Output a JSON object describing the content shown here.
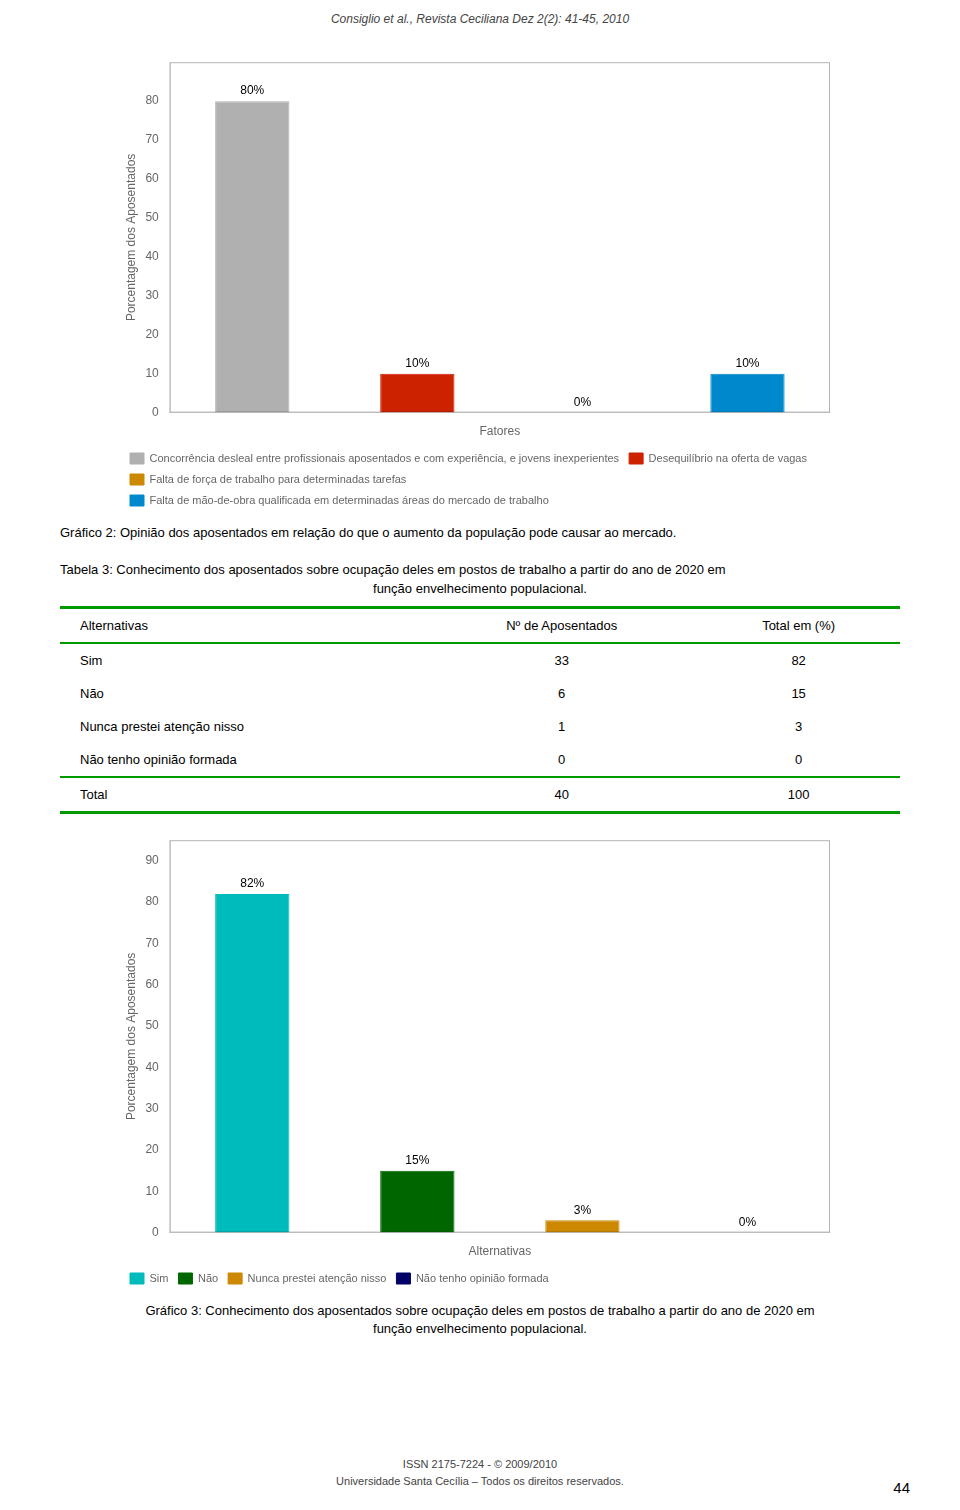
{
  "chart_data": [
    {
      "type": "bar",
      "title": [
        "Gráfico 2: Opinião dos aposentados em relação do que o aumento da população pode causar ao mercado."
      ],
      "annotations": [
        "Consiglio et al., Revista Ceciliana Dez 2(2): 41-45, 2010"
      ],
      "xlabel": "Fatores",
      "ylabel": "Porcentagem dos Aposentados",
      "categories": [
        null,
        null,
        null,
        null
      ],
      "series": [
        {
          "name": "Concorrência desleal entre profissionais aposentados e com experiência, e jovens inexperientes",
          "color": "#b0b0b0",
          "values": [
            80,
            null,
            null,
            null
          ],
          "value_labels": [
            "80%",
            null,
            null,
            null
          ]
        },
        {
          "name": "Desequilíbrio na oferta de vagas",
          "color": "#cc2200",
          "values": [
            null,
            10,
            null,
            null
          ],
          "value_labels": [
            null,
            "10%",
            null,
            null
          ]
        },
        {
          "name": "Falta de força de trabalho para determinadas tarefas",
          "color": "#cc8800",
          "values": [
            null,
            null,
            0,
            null
          ],
          "value_labels": [
            null,
            null,
            "0%",
            null
          ]
        },
        {
          "name": "Falta de mão-de-obra qualificada em determinadas áreas do mercado de trabalho",
          "color": "#0088cc",
          "values": [
            null,
            null,
            null,
            10
          ],
          "value_labels": [
            null,
            null,
            null,
            "10%"
          ]
        }
      ],
      "ylim": [
        0,
        90
      ],
      "yticks": [
        0,
        10,
        20,
        30,
        40,
        50,
        60,
        70,
        80
      ],
      "grid": false,
      "legend": "bottom",
      "data_labels": true,
      "tick_labels": "y"
    },
    {
      "type": "table",
      "title": [
        "Tabela 3: Conhecimento dos aposentados sobre ocupação deles em postos de trabalho a partir do ano de 2020 em",
        "função envelhecimento populacional."
      ],
      "xlabel": "Alternativas",
      "categories": [
        "Sim",
        "Não",
        "Nunca prestei atenção nisso",
        "Não tenho opinião formada",
        "Total"
      ],
      "series": [
        {
          "name": "Nº de Aposentados",
          "values": [
            33,
            6,
            1,
            0,
            40
          ]
        },
        {
          "name": "Total em (%)",
          "values": [
            82,
            15,
            3,
            0,
            100
          ]
        }
      ],
      "color": "#009900"
    },
    {
      "type": "bar",
      "title": [
        "Gráfico 3: Conhecimento dos aposentados sobre ocupação deles em postos de trabalho a partir do ano de 2020 em",
        "função envelhecimento populacional."
      ],
      "annotations": [
        "ISSN 2175-7224 - © 2009/2010",
        "Universidade Santa Cecília – Todos os direitos reservados.",
        "44"
      ],
      "xlabel": "Alternativas",
      "ylabel": "Porcentagem dos Aposentados",
      "categories": [
        null,
        null,
        null,
        null
      ],
      "series": [
        {
          "name": "Sim",
          "color": "#00bbbb",
          "values": [
            82,
            null,
            null,
            null
          ],
          "value_labels": [
            "82%",
            null,
            null,
            null
          ]
        },
        {
          "name": "Não",
          "color": "#006600",
          "values": [
            null,
            15,
            null,
            null
          ],
          "value_labels": [
            null,
            "15%",
            null,
            null
          ]
        },
        {
          "name": "Nunca prestei atenção nisso",
          "color": "#cc8800",
          "values": [
            null,
            null,
            3,
            null
          ],
          "value_labels": [
            null,
            null,
            "3%",
            null
          ]
        },
        {
          "name": "Não tenho opinião formada",
          "color": "#000066",
          "values": [
            null,
            null,
            null,
            0
          ],
          "value_labels": [
            null,
            null,
            null,
            "0%"
          ]
        }
      ],
      "ylim": [
        0,
        95
      ],
      "yticks": [
        0,
        10,
        20,
        30,
        40,
        50,
        60,
        70,
        80,
        90
      ],
      "grid": false,
      "legend": "bottom",
      "data_labels": true,
      "tick_labels": "y"
    }
  ]
}
